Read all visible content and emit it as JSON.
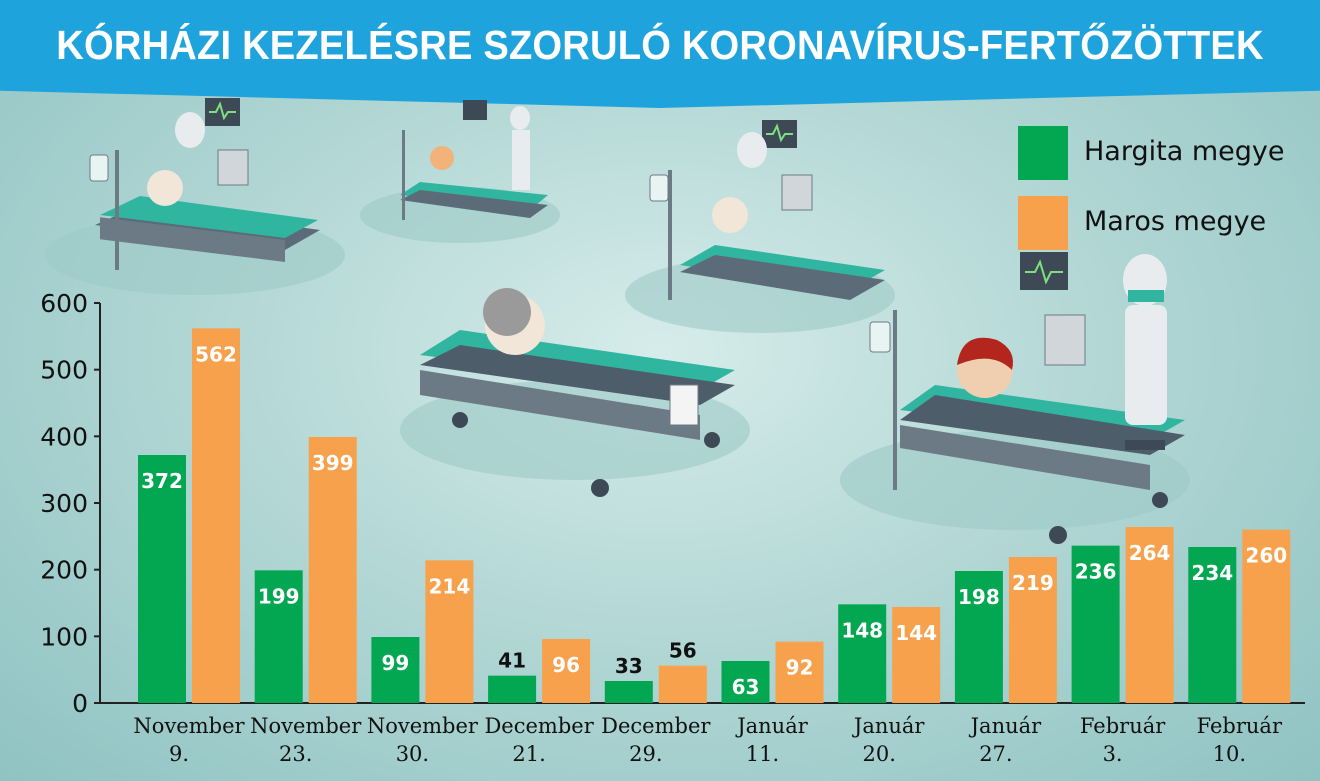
{
  "title": "KÓRHÁZI KEZELÉSRE SZORULÓ KORONAVÍRUS-FERTŐZÖTTEK",
  "colors": {
    "hargita": "#03a651",
    "maros": "#f7a14c",
    "banner": "#1fa3dc"
  },
  "illustration_icons": [
    "hospital-bed-icon",
    "patient-icon",
    "doctor-icon",
    "heart-monitor-icon",
    "iv-drip-icon"
  ],
  "chart_data": {
    "type": "bar",
    "title": "KÓRHÁZI KEZELÉSRE SZORULÓ KORONAVÍRUS-FERTŐZÖTTEK",
    "xlabel": "",
    "ylabel": "",
    "ylim": [
      0,
      600
    ],
    "yticks": [
      0,
      100,
      200,
      300,
      400,
      500,
      600
    ],
    "grid": false,
    "legend_position": "top-right",
    "categories": [
      [
        "November",
        "9."
      ],
      [
        "November",
        "23."
      ],
      [
        "November",
        "30."
      ],
      [
        "December",
        "21."
      ],
      [
        "December",
        "29."
      ],
      [
        "Január",
        "11."
      ],
      [
        "Január",
        "20."
      ],
      [
        "Január",
        "27."
      ],
      [
        "Február",
        "3."
      ],
      [
        "Február",
        "10."
      ]
    ],
    "series": [
      {
        "name": "Hargita megye",
        "color": "#03a651",
        "values": [
          372,
          199,
          99,
          41,
          33,
          63,
          148,
          198,
          236,
          234
        ]
      },
      {
        "name": "Maros megye",
        "color": "#f7a14c",
        "values": [
          562,
          399,
          214,
          96,
          56,
          92,
          144,
          219,
          264,
          260
        ]
      }
    ]
  }
}
